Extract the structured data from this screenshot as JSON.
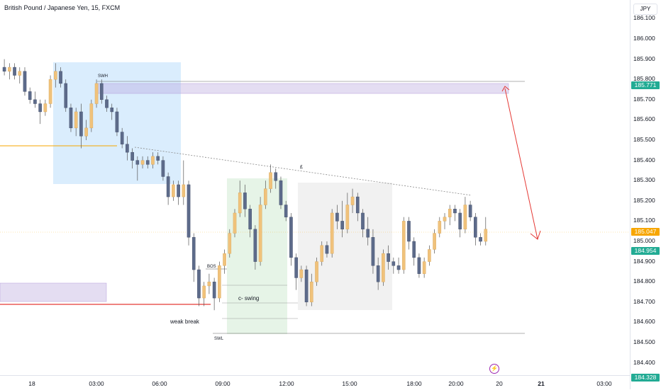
{
  "header": {
    "title": "British Pound / Japanese Yen, 15, FXCM",
    "currency": "JPY"
  },
  "price_axis": {
    "ticks": [
      "186.100",
      "186.000",
      "185.900",
      "185.800",
      "185.700",
      "185.600",
      "185.500",
      "185.400",
      "185.300",
      "185.200",
      "185.100",
      "185.000",
      "184.900",
      "184.800",
      "184.700",
      "184.600",
      "184.500",
      "184.400"
    ],
    "labels": [
      {
        "text": "185.771",
        "color": "#22ab94"
      },
      {
        "text": "185.047",
        "color": "#f7a600"
      },
      {
        "text": "184.954",
        "color": "#22ab94"
      },
      {
        "text": "184.328",
        "color": "#22ab94"
      }
    ]
  },
  "time_axis": {
    "ticks": [
      {
        "text": "18",
        "bold": false
      },
      {
        "text": "03:00",
        "bold": false
      },
      {
        "text": "06:00",
        "bold": false
      },
      {
        "text": "09:00",
        "bold": false
      },
      {
        "text": "12:00",
        "bold": false
      },
      {
        "text": "15:00",
        "bold": false
      },
      {
        "text": "18:00",
        "bold": false
      },
      {
        "text": "20:00",
        "bold": false
      },
      {
        "text": "20",
        "bold": false
      },
      {
        "text": "21",
        "bold": true
      },
      {
        "text": "03:00",
        "bold": false
      }
    ]
  },
  "annotations": {
    "swh": "SWH",
    "swl": "SWL",
    "bos": "BOS",
    "weak_break": "weak break",
    "c_swing": "c- swing",
    "trend_mark": "£"
  },
  "colors": {
    "bull": "#f0c27b",
    "bear": "#5d6b8a",
    "ghost_bear": "#9aa3b5",
    "ob_purple": "#b39ddb",
    "zone_blue": "#bbdefb",
    "zone_green": "#c8e6c9",
    "zone_gray": "#e0e0e0",
    "red_line": "#e53935",
    "orange_line": "#f7a600"
  },
  "chart_data": {
    "type": "candlestick",
    "symbol": "GBPJPY",
    "interval": "15",
    "ylim": [
      184.328,
      186.1
    ],
    "candles": [
      [
        185.86,
        185.9,
        185.82,
        185.84
      ],
      [
        185.84,
        185.88,
        185.8,
        185.86
      ],
      [
        185.86,
        185.88,
        185.8,
        185.82
      ],
      [
        185.82,
        185.86,
        185.78,
        185.84
      ],
      [
        185.84,
        185.86,
        185.72,
        185.74
      ],
      [
        185.74,
        185.76,
        185.68,
        185.7
      ],
      [
        185.7,
        185.74,
        185.66,
        185.68
      ],
      [
        185.68,
        185.7,
        185.58,
        185.64
      ],
      [
        185.64,
        185.7,
        185.62,
        185.68
      ],
      [
        185.68,
        185.82,
        185.66,
        185.8
      ],
      [
        185.8,
        185.88,
        185.76,
        185.84
      ],
      [
        185.84,
        185.86,
        185.76,
        185.78
      ],
      [
        185.78,
        185.8,
        185.64,
        185.66
      ],
      [
        185.66,
        185.68,
        185.54,
        185.56
      ],
      [
        185.56,
        185.66,
        185.52,
        185.64
      ],
      [
        185.64,
        185.68,
        185.46,
        185.52
      ],
      [
        185.52,
        185.6,
        185.5,
        185.56
      ],
      [
        185.56,
        185.7,
        185.54,
        185.68
      ],
      [
        185.68,
        185.8,
        185.66,
        185.78
      ],
      [
        185.78,
        185.8,
        185.68,
        185.7
      ],
      [
        185.7,
        185.72,
        185.64,
        185.66
      ],
      [
        185.66,
        185.68,
        185.6,
        185.64
      ],
      [
        185.64,
        185.66,
        185.52,
        185.54
      ],
      [
        185.54,
        185.56,
        185.46,
        185.48
      ],
      [
        185.48,
        185.52,
        185.4,
        185.44
      ],
      [
        185.44,
        185.46,
        185.36,
        185.4
      ],
      [
        185.4,
        185.42,
        185.3,
        185.38
      ],
      [
        185.38,
        185.42,
        185.36,
        185.4
      ],
      [
        185.4,
        185.42,
        185.36,
        185.38
      ],
      [
        185.38,
        185.44,
        185.36,
        185.42
      ],
      [
        185.42,
        185.44,
        185.38,
        185.4
      ],
      [
        185.4,
        185.42,
        185.3,
        185.32
      ],
      [
        185.32,
        185.34,
        185.18,
        185.22
      ],
      [
        185.22,
        185.3,
        185.2,
        185.28
      ],
      [
        185.28,
        185.3,
        185.18,
        185.22
      ],
      [
        185.22,
        185.4,
        185.18,
        185.28
      ],
      [
        185.28,
        185.3,
        184.98,
        185.02
      ],
      [
        185.02,
        185.04,
        184.8,
        184.86
      ],
      [
        184.86,
        184.88,
        184.68,
        184.72
      ],
      [
        184.72,
        184.8,
        184.68,
        184.78
      ],
      [
        184.78,
        184.84,
        184.74,
        184.8
      ],
      [
        184.8,
        184.82,
        184.66,
        184.72
      ],
      [
        184.72,
        184.9,
        184.7,
        184.88
      ],
      [
        184.88,
        184.96,
        184.84,
        184.94
      ],
      [
        184.94,
        185.06,
        184.92,
        185.04
      ],
      [
        185.04,
        185.16,
        185.02,
        185.14
      ],
      [
        185.14,
        185.3,
        185.12,
        185.24
      ],
      [
        185.24,
        185.28,
        185.12,
        185.16
      ],
      [
        185.16,
        185.18,
        185.02,
        185.06
      ],
      [
        185.06,
        185.08,
        184.86,
        184.9
      ],
      [
        184.9,
        185.22,
        184.88,
        185.18
      ],
      [
        185.18,
        185.3,
        185.16,
        185.26
      ],
      [
        185.26,
        185.38,
        185.24,
        185.34
      ],
      [
        185.34,
        185.36,
        185.26,
        185.3
      ],
      [
        185.3,
        185.32,
        185.16,
        185.18
      ],
      [
        185.18,
        185.2,
        185.1,
        185.12
      ],
      [
        185.12,
        185.14,
        184.88,
        184.92
      ],
      [
        184.92,
        184.94,
        184.76,
        184.82
      ],
      [
        184.82,
        184.88,
        184.8,
        184.86
      ],
      [
        184.86,
        184.88,
        184.68,
        184.7
      ],
      [
        184.7,
        184.84,
        184.68,
        184.8
      ],
      [
        184.8,
        184.92,
        184.78,
        184.9
      ],
      [
        184.9,
        185.0,
        184.88,
        184.98
      ],
      [
        184.98,
        185.0,
        184.92,
        184.94
      ],
      [
        184.94,
        185.16,
        184.92,
        185.14
      ],
      [
        185.14,
        185.18,
        185.06,
        185.1
      ],
      [
        185.1,
        185.2,
        185.02,
        185.06
      ],
      [
        185.06,
        185.24,
        185.04,
        185.18
      ],
      [
        185.18,
        185.26,
        185.14,
        185.22
      ],
      [
        185.22,
        185.24,
        185.1,
        185.14
      ],
      [
        185.14,
        185.16,
        185.02,
        185.06
      ],
      [
        185.06,
        185.12,
        184.98,
        185.02
      ],
      [
        185.02,
        185.06,
        184.84,
        184.88
      ],
      [
        184.88,
        184.92,
        184.76,
        184.8
      ],
      [
        184.8,
        184.96,
        184.78,
        184.94
      ],
      [
        184.94,
        184.98,
        184.86,
        184.9
      ],
      [
        184.9,
        184.92,
        184.84,
        184.88
      ],
      [
        184.88,
        184.92,
        184.84,
        184.86
      ],
      [
        184.86,
        185.12,
        184.84,
        185.1
      ],
      [
        185.1,
        185.12,
        184.96,
        185.0
      ],
      [
        185.0,
        185.02,
        184.88,
        184.92
      ],
      [
        184.92,
        184.94,
        184.82,
        184.84
      ],
      [
        184.84,
        184.92,
        184.82,
        184.9
      ],
      [
        184.9,
        184.98,
        184.88,
        184.96
      ],
      [
        184.96,
        185.06,
        184.94,
        185.04
      ],
      [
        185.04,
        185.12,
        185.02,
        185.1
      ],
      [
        185.1,
        185.14,
        185.06,
        185.12
      ],
      [
        185.12,
        185.18,
        185.08,
        185.16
      ],
      [
        185.16,
        185.18,
        185.1,
        185.14
      ],
      [
        185.14,
        185.16,
        185.02,
        185.06
      ],
      [
        185.06,
        185.22,
        185.04,
        185.18
      ],
      [
        185.18,
        185.2,
        185.1,
        185.12
      ],
      [
        185.12,
        185.14,
        184.98,
        185.02
      ],
      [
        185.02,
        185.04,
        184.98,
        185.0
      ],
      [
        185.0,
        185.12,
        184.98,
        185.06
      ]
    ]
  }
}
